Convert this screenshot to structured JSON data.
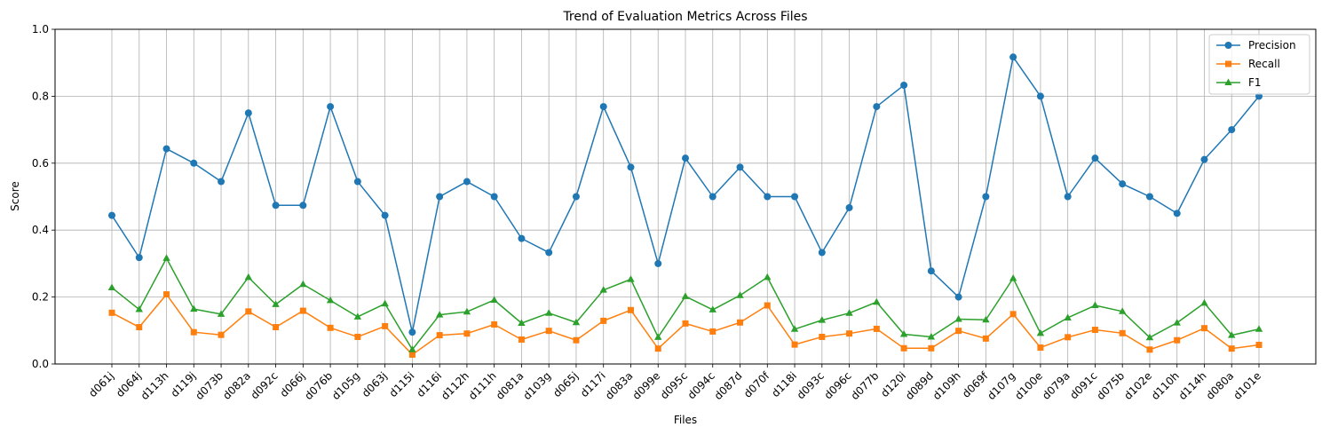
{
  "chart_data": {
    "type": "line",
    "title": "Trend of Evaluation Metrics Across Files",
    "xlabel": "Files",
    "ylabel": "Score",
    "ylim": [
      0,
      1
    ],
    "yticks": [
      "0.0",
      "0.2",
      "0.4",
      "0.6",
      "0.8",
      "1.0"
    ],
    "grid": true,
    "legend_position": "top-right",
    "categories": [
      "d061j",
      "d064j",
      "d113h",
      "d119j",
      "d073b",
      "d082a",
      "d092c",
      "d066j",
      "d076b",
      "d105g",
      "d063j",
      "d115i",
      "d116i",
      "d112h",
      "d111h",
      "d081a",
      "d103g",
      "d065j",
      "d117i",
      "d083a",
      "d099e",
      "d095c",
      "d094c",
      "d087d",
      "d070f",
      "d118i",
      "d093c",
      "d096c",
      "d077b",
      "d120i",
      "d089d",
      "d109h",
      "d069f",
      "d107g",
      "d100e",
      "d079a",
      "d091c",
      "d075b",
      "d102e",
      "d110h",
      "d114h",
      "d080a",
      "d101e"
    ],
    "series": [
      {
        "name": "Precision",
        "color": "#1f77b4",
        "marker": "circle",
        "values": [
          0.444,
          0.318,
          0.643,
          0.6,
          0.545,
          0.75,
          0.474,
          0.474,
          0.769,
          0.545,
          0.444,
          0.095,
          0.5,
          0.545,
          0.5,
          0.375,
          0.333,
          0.5,
          0.769,
          0.588,
          0.3,
          0.615,
          0.5,
          0.588,
          0.5,
          0.5,
          0.333,
          0.467,
          0.769,
          0.833,
          0.278,
          0.2,
          0.5,
          0.917,
          0.8,
          0.5,
          0.615,
          0.538,
          0.5,
          0.45,
          0.611,
          0.7,
          0.8
        ]
      },
      {
        "name": "Recall",
        "color": "#ff7f0e",
        "marker": "square",
        "values": [
          0.153,
          0.11,
          0.208,
          0.095,
          0.087,
          0.157,
          0.11,
          0.159,
          0.108,
          0.081,
          0.113,
          0.028,
          0.086,
          0.091,
          0.118,
          0.073,
          0.099,
          0.071,
          0.129,
          0.161,
          0.046,
          0.121,
          0.097,
          0.124,
          0.175,
          0.058,
          0.081,
          0.091,
          0.105,
          0.047,
          0.047,
          0.099,
          0.076,
          0.149,
          0.049,
          0.08,
          0.102,
          0.092,
          0.043,
          0.071,
          0.107,
          0.046,
          0.057
        ]
      },
      {
        "name": "F1",
        "color": "#2ca02c",
        "marker": "triangle",
        "values": [
          0.228,
          0.163,
          0.316,
          0.164,
          0.149,
          0.259,
          0.178,
          0.238,
          0.19,
          0.141,
          0.18,
          0.043,
          0.147,
          0.156,
          0.191,
          0.122,
          0.152,
          0.124,
          0.221,
          0.253,
          0.08,
          0.202,
          0.162,
          0.205,
          0.259,
          0.104,
          0.131,
          0.152,
          0.185,
          0.089,
          0.081,
          0.134,
          0.132,
          0.256,
          0.092,
          0.138,
          0.175,
          0.157,
          0.079,
          0.123,
          0.182,
          0.086,
          0.104
        ]
      }
    ]
  }
}
